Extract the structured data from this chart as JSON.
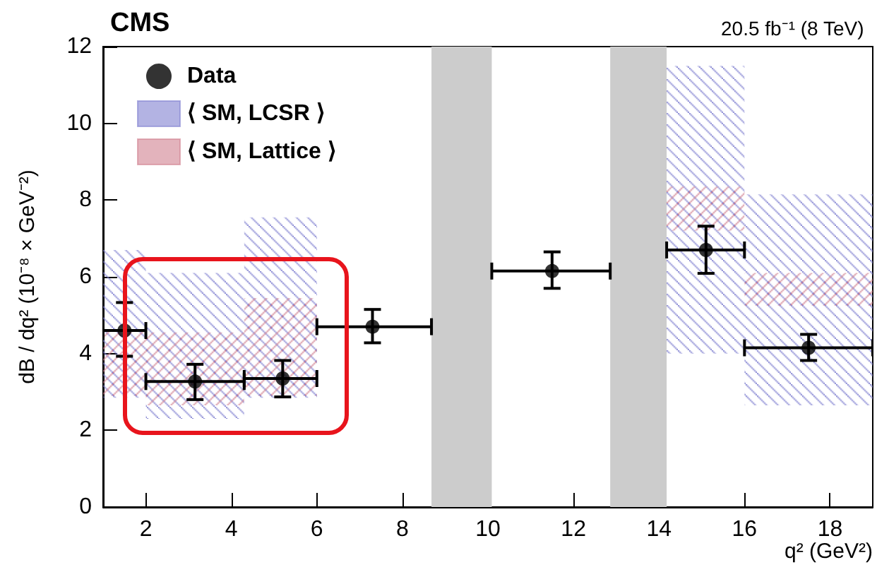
{
  "chart_data": {
    "type": "scatter",
    "title": "CMS",
    "subtitle": "20.5 fb⁻¹ (8 TeV)",
    "xlabel": "q² (GeV²)",
    "ylabel": "dB / dq² (10⁻⁸ × GeV⁻²)",
    "xlim": [
      1,
      19
    ],
    "xticks": [
      2,
      4,
      6,
      8,
      10,
      12,
      14,
      16,
      18
    ],
    "ylim": [
      0,
      12
    ],
    "yticks": [
      0,
      2,
      4,
      6,
      8,
      10,
      12
    ],
    "series": [
      {
        "name": "Data",
        "type": "scatter",
        "color": "#000000",
        "x": [
          1.5,
          3.15,
          5.2,
          7.3,
          11.5,
          15.1,
          17.5
        ],
        "values": [
          4.6,
          3.27,
          3.35,
          4.7,
          6.15,
          6.7,
          4.15
        ],
        "errors": [
          [
            3.93,
            5.33
          ],
          [
            2.8,
            3.72
          ],
          [
            2.87,
            3.82
          ],
          [
            4.28,
            5.15
          ],
          [
            5.7,
            6.65
          ],
          [
            6.09,
            7.32
          ],
          [
            3.82,
            4.5
          ]
        ],
        "xerrors": [
          [
            1,
            2
          ],
          [
            2,
            4.3
          ],
          [
            4.3,
            6
          ],
          [
            6,
            8.68
          ],
          [
            10.09,
            12.86
          ],
          [
            14.18,
            16
          ],
          [
            16,
            19
          ]
        ]
      },
      {
        "name": "⟨ SM, LCSR ⟩",
        "type": "area",
        "color": "#8080d0",
        "x": [
          1,
          2,
          2,
          4.3,
          4.3,
          6,
          14.18,
          16,
          16,
          19
        ],
        "values": [
          null,
          null,
          null,
          null,
          null,
          null,
          null,
          null,
          null,
          null
        ],
        "lower": [
          2.85,
          2.85,
          2.3,
          2.3,
          2.85,
          2.85,
          4.0,
          4.0,
          2.65,
          2.65
        ],
        "upper": [
          6.7,
          6.7,
          6.1,
          6.1,
          7.55,
          7.55,
          11.5,
          11.5,
          8.15,
          8.15
        ]
      },
      {
        "name": "⟨ SM, Lattice ⟩",
        "type": "area",
        "color": "#d08090",
        "x": [
          1,
          2,
          2,
          4.3,
          4.3,
          6,
          14.18,
          16,
          16,
          19
        ],
        "values": [
          null,
          null,
          null,
          null,
          null,
          null,
          null,
          null,
          null,
          null
        ],
        "lower": [
          2.9,
          2.9,
          2.65,
          2.65,
          2.9,
          2.9,
          7.2,
          7.2,
          5.25,
          5.25
        ],
        "upper": [
          4.6,
          4.6,
          4.55,
          4.55,
          5.45,
          5.45,
          8.35,
          8.35,
          6.1,
          6.1
        ]
      }
    ],
    "bands": [
      {
        "axis": "x",
        "from": 8.68,
        "to": 10.09,
        "color": "#cccccc"
      },
      {
        "axis": "x",
        "from": 12.86,
        "to": 14.18,
        "color": "#cccccc"
      }
    ],
    "marker": "circle",
    "grid": false,
    "legend": "top left"
  }
}
